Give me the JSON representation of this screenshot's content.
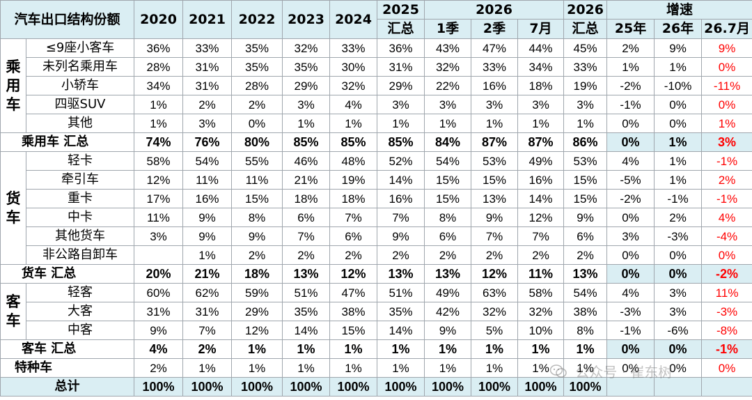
{
  "header": {
    "title": "汽车出口结构份额",
    "years": [
      "2020",
      "2021",
      "2022",
      "2023",
      "2024"
    ],
    "y2025": "2025",
    "summary_label": "汇总",
    "y2026": "2026",
    "q1": "1季",
    "q2": "2季",
    "jul": "7月",
    "y2026b": "2026",
    "growth": "增速",
    "g25": "25年",
    "g26": "26年",
    "g267": "26.7月"
  },
  "colors": {
    "header_bg": "#daeef3",
    "red": "#ff0000",
    "border": "#9fa6ad"
  },
  "groups": {
    "passenger": "乘用车",
    "truck": "货车",
    "bus": "客车"
  },
  "rows": {
    "passenger": [
      {
        "label": "≤9座小客车",
        "values": [
          "36%",
          "33%",
          "35%",
          "32%",
          "33%",
          "36%",
          "43%",
          "47%",
          "44%",
          "45%",
          "2%",
          "9%",
          "9%"
        ]
      },
      {
        "label": "未列名乘用车",
        "values": [
          "28%",
          "31%",
          "35%",
          "35%",
          "30%",
          "31%",
          "32%",
          "33%",
          "34%",
          "33%",
          "1%",
          "1%",
          "0%"
        ]
      },
      {
        "label": "小轿车",
        "values": [
          "34%",
          "31%",
          "28%",
          "29%",
          "32%",
          "29%",
          "22%",
          "16%",
          "18%",
          "19%",
          "-2%",
          "-10%",
          "-11%"
        ]
      },
      {
        "label": "四驱SUV",
        "values": [
          "1%",
          "2%",
          "2%",
          "3%",
          "4%",
          "3%",
          "3%",
          "3%",
          "3%",
          "3%",
          "-1%",
          "0%",
          "0%"
        ]
      },
      {
        "label": "其他",
        "values": [
          "1%",
          "3%",
          "0%",
          "1%",
          "1%",
          "1%",
          "1%",
          "1%",
          "1%",
          "1%",
          "0%",
          "0%",
          "1%"
        ]
      }
    ],
    "passenger_total": {
      "label": "乘用车 汇总",
      "values": [
        "74%",
        "76%",
        "80%",
        "85%",
        "85%",
        "85%",
        "84%",
        "87%",
        "87%",
        "86%",
        "0%",
        "1%",
        "3%"
      ]
    },
    "truck": [
      {
        "label": "轻卡",
        "values": [
          "58%",
          "54%",
          "55%",
          "46%",
          "48%",
          "52%",
          "54%",
          "53%",
          "49%",
          "53%",
          "4%",
          "1%",
          "-1%"
        ]
      },
      {
        "label": "牵引车",
        "values": [
          "12%",
          "11%",
          "11%",
          "21%",
          "19%",
          "14%",
          "15%",
          "15%",
          "16%",
          "15%",
          "-5%",
          "1%",
          "2%"
        ]
      },
      {
        "label": "重卡",
        "values": [
          "17%",
          "16%",
          "15%",
          "18%",
          "18%",
          "16%",
          "15%",
          "13%",
          "14%",
          "15%",
          "-2%",
          "-1%",
          "-1%"
        ]
      },
      {
        "label": "中卡",
        "values": [
          "11%",
          "9%",
          "8%",
          "6%",
          "7%",
          "7%",
          "8%",
          "9%",
          "12%",
          "9%",
          "0%",
          "2%",
          "4%"
        ]
      },
      {
        "label": "其他货车",
        "values": [
          "3%",
          "9%",
          "9%",
          "7%",
          "6%",
          "9%",
          "6%",
          "7%",
          "7%",
          "6%",
          "3%",
          "-3%",
          "-4%"
        ]
      },
      {
        "label": "非公路自卸车",
        "values": [
          "",
          "1%",
          "2%",
          "2%",
          "2%",
          "2%",
          "2%",
          "2%",
          "2%",
          "2%",
          "0%",
          "0%",
          "0%"
        ]
      }
    ],
    "truck_total": {
      "label": "货车 汇总",
      "values": [
        "20%",
        "21%",
        "18%",
        "13%",
        "12%",
        "13%",
        "13%",
        "12%",
        "11%",
        "13%",
        "0%",
        "0%",
        "-2%"
      ]
    },
    "bus": [
      {
        "label": "轻客",
        "values": [
          "60%",
          "62%",
          "59%",
          "51%",
          "47%",
          "51%",
          "49%",
          "63%",
          "58%",
          "54%",
          "4%",
          "3%",
          "11%"
        ]
      },
      {
        "label": "大客",
        "values": [
          "31%",
          "31%",
          "29%",
          "35%",
          "38%",
          "35%",
          "42%",
          "32%",
          "32%",
          "38%",
          "-3%",
          "3%",
          "-3%"
        ]
      },
      {
        "label": "中客",
        "values": [
          "9%",
          "7%",
          "12%",
          "14%",
          "15%",
          "14%",
          "9%",
          "5%",
          "10%",
          "8%",
          "-1%",
          "-6%",
          "-8%"
        ]
      }
    ],
    "bus_total": {
      "label": "客车 汇总",
      "values": [
        "4%",
        "2%",
        "1%",
        "1%",
        "1%",
        "1%",
        "1%",
        "1%",
        "1%",
        "1%",
        "0%",
        "0%",
        "-1%"
      ]
    },
    "special": {
      "label": "特种车",
      "values": [
        "2%",
        "1%",
        "1%",
        "1%",
        "1%",
        "1%",
        "1%",
        "1%",
        "1%",
        "1%",
        "0%",
        "0%",
        "0%"
      ]
    },
    "grand_total": {
      "label": "总计",
      "values": [
        "100%",
        "100%",
        "100%",
        "100%",
        "100%",
        "100%",
        "100%",
        "100%",
        "100%",
        "100%",
        "",
        "",
        ""
      ]
    }
  },
  "watermark": {
    "icon": "wechat-icon",
    "text": "公众号 · 崔东树"
  }
}
